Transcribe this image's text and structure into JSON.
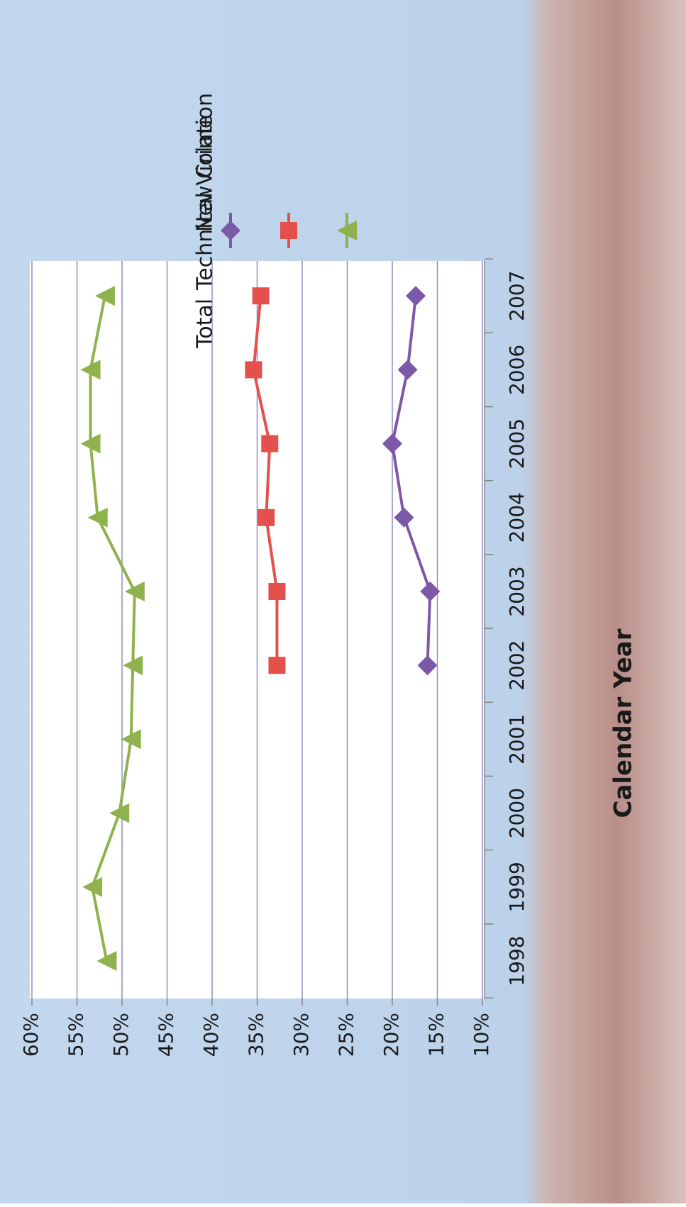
{
  "chart_data": {
    "type": "line",
    "x_axis_label": "Calendar Year",
    "categories": [
      "1998",
      "1999",
      "2000",
      "2001",
      "2002",
      "2003",
      "2004",
      "2005",
      "2006",
      "2007"
    ],
    "series": [
      {
        "name": "New Crime",
        "color": "#7b59a8",
        "marker": "diamond",
        "values": [
          null,
          null,
          null,
          null,
          16.1,
          15.8,
          18.7,
          20.0,
          18.3,
          17.4
        ]
      },
      {
        "name": "Technical Violation",
        "color": "#e4504c",
        "marker": "square",
        "values": [
          null,
          null,
          null,
          null,
          32.8,
          32.8,
          34.0,
          33.6,
          35.4,
          34.6
        ]
      },
      {
        "name": "Total",
        "color": "#8fb24d",
        "marker": "triangle",
        "values": [
          51.7,
          53.3,
          50.3,
          49.0,
          48.8,
          48.6,
          52.7,
          53.5,
          53.5,
          51.9
        ]
      }
    ],
    "ylim": [
      10,
      60
    ],
    "yticks": [
      {
        "value": 10,
        "label": "10%"
      },
      {
        "value": 15,
        "label": "15%"
      },
      {
        "value": 20,
        "label": "20%"
      },
      {
        "value": 25,
        "label": "25%"
      },
      {
        "value": 30,
        "label": "30%"
      },
      {
        "value": 35,
        "label": "35%"
      },
      {
        "value": 40,
        "label": "40%"
      },
      {
        "value": 45,
        "label": "45%"
      },
      {
        "value": 50,
        "label": "50%"
      },
      {
        "value": 55,
        "label": "55%"
      },
      {
        "value": 60,
        "label": "60%"
      }
    ],
    "grid": true
  }
}
